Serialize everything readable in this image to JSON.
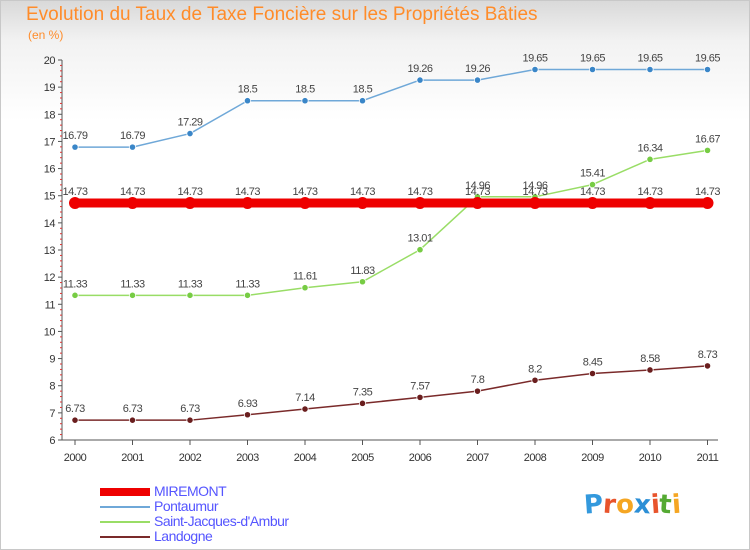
{
  "header": {
    "title": "Evolution du Taux de Taxe Foncière sur les Propriétés Bâties",
    "subtitle": "(en %)"
  },
  "logo": {
    "text": "Proxiti",
    "letter_colors": [
      "#3399dd",
      "#e8542c",
      "#f5a623",
      "#2c8fd6",
      "#e8542c",
      "#55aa33",
      "#f5a623"
    ]
  },
  "chart_data": {
    "type": "line",
    "title": "Evolution du Taux de Taxe Foncière sur les Propriétés Bâties",
    "ylabel": "(en %)",
    "xlabel": "",
    "ylim": [
      6,
      20
    ],
    "yticks": [
      6,
      7,
      8,
      9,
      10,
      11,
      12,
      13,
      14,
      15,
      16,
      17,
      18,
      19,
      20
    ],
    "x": [
      "2000",
      "2001",
      "2002",
      "2003",
      "2004",
      "2005",
      "2006",
      "2007",
      "2008",
      "2009",
      "2010",
      "2011"
    ],
    "grid": false,
    "legend_position": "bottom-left",
    "series": [
      {
        "name": "MIREMONT",
        "color": "#ee0000",
        "values": [
          14.73,
          14.73,
          14.73,
          14.73,
          14.73,
          14.73,
          14.73,
          14.73,
          14.73,
          14.73,
          14.73,
          14.73
        ],
        "labels": [
          "14.73",
          "14.73",
          "14.73",
          "14.73",
          "14.73",
          "14.73",
          "14.73",
          "14.73",
          "14.73",
          "14.73",
          "14.73",
          "14.73"
        ]
      },
      {
        "name": "Pontaumur",
        "color": "#6fa8d8",
        "marker_color": "#3a86c8",
        "values": [
          16.79,
          16.79,
          17.29,
          18.5,
          18.5,
          18.5,
          19.26,
          19.26,
          19.65,
          19.65,
          19.65,
          19.65
        ],
        "labels": [
          "16.79",
          "16.79",
          "17.29",
          "18.5",
          "18.5",
          "18.5",
          "19.26",
          "19.26",
          "19.65",
          "19.65",
          "19.65",
          "19.65"
        ]
      },
      {
        "name": "Saint-Jacques-d'Ambur",
        "color": "#99dd66",
        "marker_color": "#77cc44",
        "values": [
          11.33,
          11.33,
          11.33,
          11.33,
          11.61,
          11.83,
          13.01,
          14.96,
          14.96,
          15.41,
          16.34,
          16.67
        ],
        "labels": [
          "11.33",
          "11.33",
          "11.33",
          "11.33",
          "11.61",
          "11.83",
          "13.01",
          "14.96",
          "14.96",
          "15.41",
          "16.34",
          "16.67"
        ]
      },
      {
        "name": "Landogne",
        "color": "#7a2a2a",
        "marker_color": "#6a1e1e",
        "values": [
          6.73,
          6.73,
          6.73,
          6.93,
          7.14,
          7.35,
          7.57,
          7.8,
          8.2,
          8.45,
          8.58,
          8.73
        ],
        "labels": [
          "6.73",
          "6.73",
          "6.73",
          "6.93",
          "7.14",
          "7.35",
          "7.57",
          "7.8",
          "8.2",
          "8.45",
          "8.58",
          "8.73"
        ]
      }
    ]
  }
}
